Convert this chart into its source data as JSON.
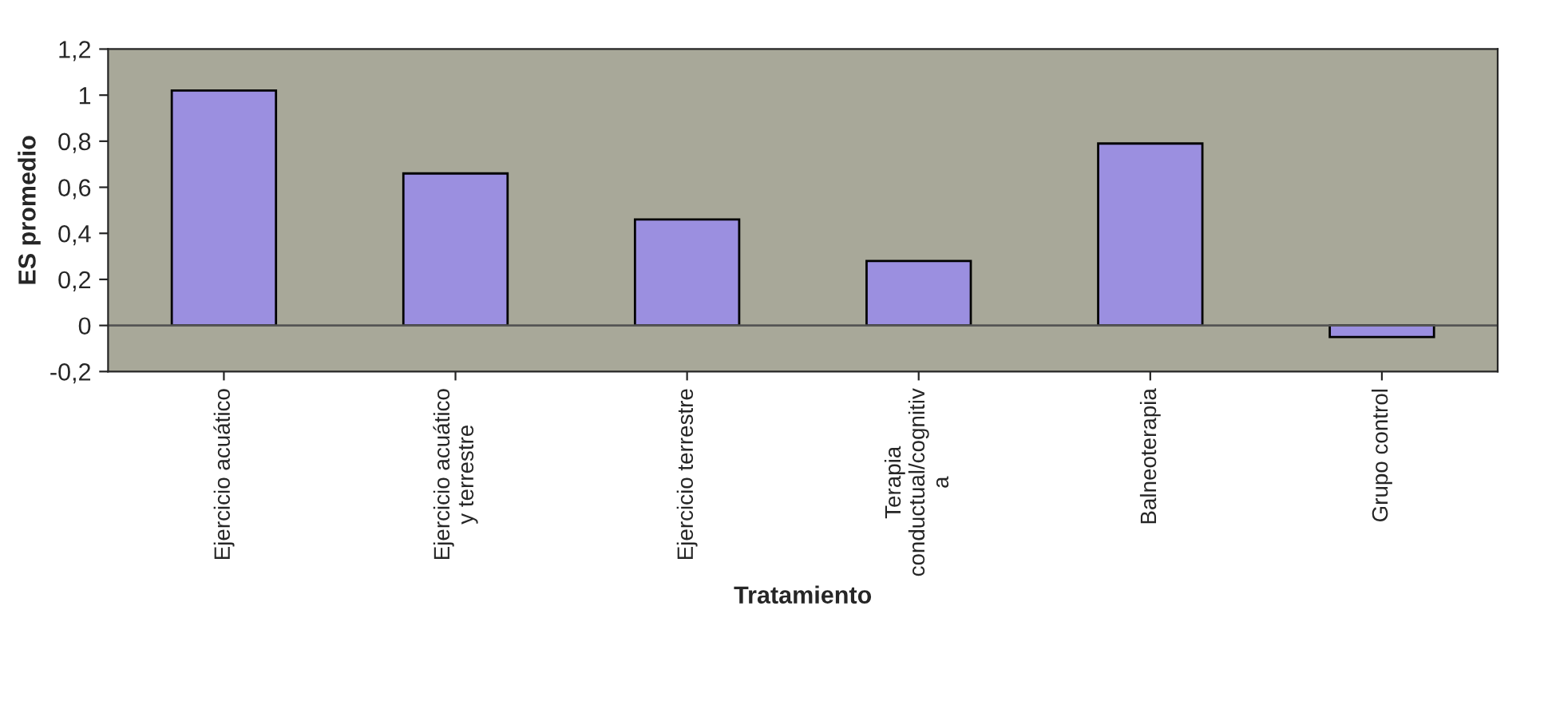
{
  "chart_data": {
    "type": "bar",
    "xlabel": "Tratamiento",
    "ylabel": "ES promedio",
    "categories": [
      "Ejercicio acuático",
      "Ejercicio acuático\ny terrestre",
      "Ejercicio terrestre",
      "Terapia\nconductual/cognitiv\na",
      "Balneoterapia",
      "Grupo control"
    ],
    "values": [
      1.02,
      0.66,
      0.46,
      0.28,
      0.79,
      -0.05
    ],
    "color": "#9b8fe0",
    "ylim": [
      -0.2,
      1.2
    ],
    "yticks": [
      {
        "value": -0.2,
        "label": "-0,2"
      },
      0,
      {
        "value": 0.2,
        "label": "0,2"
      },
      {
        "value": 0.4,
        "label": "0,4"
      },
      {
        "value": 0.6,
        "label": "0,6"
      },
      {
        "value": 0.8,
        "label": "0,8"
      },
      1,
      {
        "value": 1.2,
        "label": "1,2"
      }
    ],
    "ref_lines": [
      {
        "axis": "y",
        "value": 0,
        "color": "#555555"
      }
    ],
    "grid": false,
    "legend": false
  }
}
